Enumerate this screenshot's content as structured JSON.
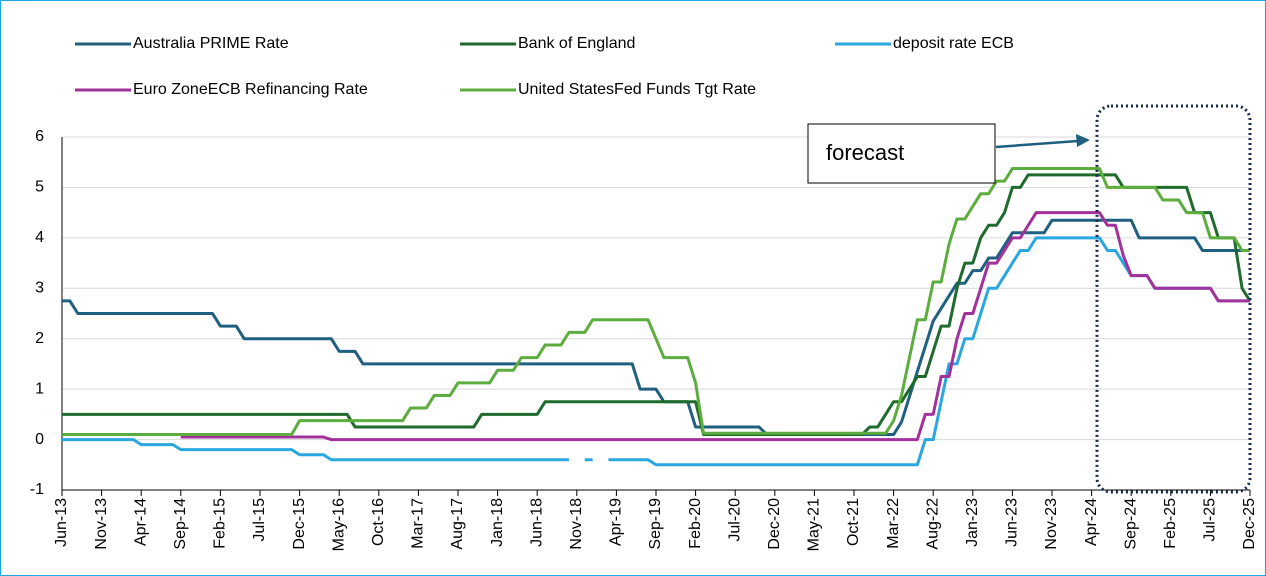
{
  "chart_data": {
    "type": "line",
    "categories": [
      "Jun-13",
      null,
      null,
      null,
      null,
      "Nov-13",
      null,
      null,
      null,
      null,
      "Apr-14",
      null,
      null,
      null,
      null,
      "Sep-14",
      null,
      null,
      null,
      null,
      "Feb-15",
      null,
      null,
      null,
      null,
      "Jul-15",
      null,
      null,
      null,
      null,
      "Dec-15",
      null,
      null,
      null,
      null,
      "May-16",
      null,
      null,
      null,
      null,
      "Oct-16",
      null,
      null,
      null,
      null,
      "Mar-17",
      null,
      null,
      null,
      null,
      "Aug-17",
      null,
      null,
      null,
      null,
      "Jan-18",
      null,
      null,
      null,
      null,
      "Jun-18",
      null,
      null,
      null,
      null,
      "Nov-18",
      null,
      null,
      null,
      null,
      "Apr-19",
      null,
      null,
      null,
      null,
      "Sep-19",
      null,
      null,
      null,
      null,
      "Feb-20",
      null,
      null,
      null,
      null,
      "Jul-20",
      null,
      null,
      null,
      null,
      "Dec-20",
      null,
      null,
      null,
      null,
      "May-21",
      null,
      null,
      null,
      null,
      "Oct-21",
      null,
      null,
      null,
      null,
      "Mar-22",
      null,
      null,
      null,
      null,
      "Aug-22",
      null,
      null,
      null,
      null,
      "Jan-23",
      null,
      null,
      null,
      null,
      "Jun-23",
      null,
      null,
      null,
      null,
      "Nov-23",
      null,
      null,
      null,
      null,
      "Apr-24",
      null,
      null,
      null,
      null,
      "Sep-24",
      null,
      null,
      null,
      null,
      "Feb-25",
      null,
      null,
      null,
      null,
      "Jul-25",
      null,
      null,
      null,
      null,
      "Dec-25"
    ],
    "series": [
      {
        "name": "Australia PRIME Rate",
        "color": "#1f5f7f",
        "values": [
          2.75,
          2.75,
          2.5,
          2.5,
          2.5,
          2.5,
          2.5,
          2.5,
          2.5,
          2.5,
          2.5,
          2.5,
          2.5,
          2.5,
          2.5,
          2.5,
          2.5,
          2.5,
          2.5,
          2.5,
          2.25,
          2.25,
          2.25,
          2,
          2,
          2,
          2,
          2,
          2,
          2,
          2,
          2,
          2,
          2,
          2,
          1.75,
          1.75,
          1.75,
          1.5,
          1.5,
          1.5,
          1.5,
          1.5,
          1.5,
          1.5,
          1.5,
          1.5,
          1.5,
          1.5,
          1.5,
          1.5,
          1.5,
          1.5,
          1.5,
          1.5,
          1.5,
          1.5,
          1.5,
          1.5,
          1.5,
          1.5,
          1.5,
          1.5,
          1.5,
          1.5,
          1.5,
          1.5,
          1.5,
          1.5,
          1.5,
          1.5,
          1.5,
          1.5,
          1,
          1,
          1,
          0.75,
          0.75,
          0.75,
          0.75,
          0.25,
          0.25,
          0.25,
          0.25,
          0.25,
          0.25,
          0.25,
          0.25,
          0.25,
          0.1,
          0.1,
          0.1,
          0.1,
          0.1,
          0.1,
          0.1,
          0.1,
          0.1,
          0.1,
          0.1,
          0.1,
          0.1,
          0.1,
          0.1,
          0.1,
          0.1,
          0.35,
          0.85,
          1.35,
          1.85,
          2.35,
          2.6,
          2.85,
          3.1,
          3.1,
          3.35,
          3.35,
          3.6,
          3.6,
          3.85,
          4.1,
          4.1,
          4.1,
          4.1,
          4.1,
          4.35,
          4.35,
          4.35,
          4.35,
          4.35,
          4.35,
          4.35,
          4.35,
          4.35,
          4.35,
          4.35,
          4,
          4,
          4,
          4,
          4,
          4,
          4,
          4,
          3.75,
          3.75,
          3.75,
          3.75,
          3.75,
          3.75,
          3.75
        ]
      },
      {
        "name": "Bank of England",
        "color": "#1e6b2d",
        "values": [
          0.5,
          0.5,
          0.5,
          0.5,
          0.5,
          0.5,
          0.5,
          0.5,
          0.5,
          0.5,
          0.5,
          0.5,
          0.5,
          0.5,
          0.5,
          0.5,
          0.5,
          0.5,
          0.5,
          0.5,
          0.5,
          0.5,
          0.5,
          0.5,
          0.5,
          0.5,
          0.5,
          0.5,
          0.5,
          0.5,
          0.5,
          0.5,
          0.5,
          0.5,
          0.5,
          0.5,
          0.5,
          0.25,
          0.25,
          0.25,
          0.25,
          0.25,
          0.25,
          0.25,
          0.25,
          0.25,
          0.25,
          0.25,
          0.25,
          0.25,
          0.25,
          0.25,
          0.25,
          0.5,
          0.5,
          0.5,
          0.5,
          0.5,
          0.5,
          0.5,
          0.5,
          0.75,
          0.75,
          0.75,
          0.75,
          0.75,
          0.75,
          0.75,
          0.75,
          0.75,
          0.75,
          0.75,
          0.75,
          0.75,
          0.75,
          0.75,
          0.75,
          0.75,
          0.75,
          0.75,
          0.75,
          0.1,
          0.1,
          0.1,
          0.1,
          0.1,
          0.1,
          0.1,
          0.1,
          0.1,
          0.1,
          0.1,
          0.1,
          0.1,
          0.1,
          0.1,
          0.1,
          0.1,
          0.1,
          0.1,
          0.1,
          0.1,
          0.25,
          0.25,
          0.5,
          0.75,
          0.75,
          1,
          1.25,
          1.25,
          1.75,
          2.25,
          2.25,
          3,
          3.5,
          3.5,
          4,
          4.25,
          4.25,
          4.5,
          5,
          5,
          5.25,
          5.25,
          5.25,
          5.25,
          5.25,
          5.25,
          5.25,
          5.25,
          5.25,
          5.25,
          5.25,
          5.25,
          5,
          5,
          5,
          5,
          5,
          5,
          5,
          5,
          5,
          4.5,
          4.5,
          4.5,
          4,
          4,
          4,
          3,
          2.75
        ]
      },
      {
        "name": "deposit rate ECB",
        "color": "#2aa7df",
        "values": [
          0,
          0,
          0,
          0,
          0,
          0,
          0,
          0,
          0,
          0,
          -0.1,
          -0.1,
          -0.1,
          -0.1,
          -0.1,
          -0.2,
          -0.2,
          -0.2,
          -0.2,
          -0.2,
          -0.2,
          -0.2,
          -0.2,
          -0.2,
          -0.2,
          -0.2,
          -0.2,
          -0.2,
          -0.2,
          -0.2,
          -0.3,
          -0.3,
          -0.3,
          -0.3,
          -0.4,
          -0.4,
          -0.4,
          -0.4,
          -0.4,
          -0.4,
          -0.4,
          -0.4,
          -0.4,
          -0.4,
          -0.4,
          -0.4,
          -0.4,
          -0.4,
          -0.4,
          -0.4,
          -0.4,
          -0.4,
          -0.4,
          -0.4,
          -0.4,
          -0.4,
          -0.4,
          -0.4,
          -0.4,
          -0.4,
          -0.4,
          -0.4,
          -0.4,
          -0.4,
          -0.4,
          null,
          -0.4,
          -0.4,
          null,
          -0.4,
          -0.4,
          -0.4,
          -0.4,
          -0.4,
          -0.4,
          -0.5,
          -0.5,
          -0.5,
          -0.5,
          -0.5,
          -0.5,
          -0.5,
          -0.5,
          -0.5,
          -0.5,
          -0.5,
          -0.5,
          -0.5,
          -0.5,
          -0.5,
          -0.5,
          -0.5,
          -0.5,
          -0.5,
          -0.5,
          -0.5,
          -0.5,
          -0.5,
          -0.5,
          -0.5,
          -0.5,
          -0.5,
          -0.5,
          -0.5,
          -0.5,
          -0.5,
          -0.5,
          -0.5,
          -0.5,
          0,
          0,
          0.75,
          1.5,
          1.5,
          2,
          2,
          2.5,
          3,
          3,
          3.25,
          3.5,
          3.75,
          3.75,
          4,
          4,
          4,
          4,
          4,
          4,
          4,
          4,
          4,
          3.75,
          3.75,
          3.5,
          3.25,
          3.25,
          3.25,
          3,
          3,
          3,
          3,
          3,
          3,
          3,
          3,
          2.75,
          2.75,
          2.75,
          2.75,
          2.75
        ]
      },
      {
        "name": "Euro ZoneECB Refinancing Rate",
        "color": "#a3319b",
        "values": [
          null,
          null,
          null,
          null,
          null,
          null,
          null,
          null,
          null,
          null,
          null,
          null,
          null,
          null,
          null,
          0.05,
          0.05,
          0.05,
          0.05,
          0.05,
          0.05,
          0.05,
          0.05,
          0.05,
          0.05,
          0.05,
          0.05,
          0.05,
          0.05,
          0.05,
          0.05,
          0.05,
          0.05,
          0.05,
          0,
          0,
          0,
          0,
          0,
          0,
          0,
          0,
          0,
          0,
          0,
          0,
          0,
          0,
          0,
          0,
          0,
          0,
          0,
          0,
          0,
          0,
          0,
          0,
          0,
          0,
          0,
          0,
          0,
          0,
          0,
          0,
          0,
          0,
          0,
          0,
          0,
          0,
          0,
          0,
          0,
          0,
          0,
          0,
          0,
          0,
          0,
          0,
          0,
          0,
          0,
          0,
          0,
          0,
          0,
          0,
          0,
          0,
          0,
          0,
          0,
          0,
          0,
          0,
          0,
          0,
          0,
          0,
          0,
          0,
          0,
          0,
          0,
          0,
          0,
          0.5,
          0.5,
          1.25,
          1.25,
          2,
          2.5,
          2.5,
          3,
          3.5,
          3.5,
          3.75,
          4,
          4,
          4.25,
          4.5,
          4.5,
          4.5,
          4.5,
          4.5,
          4.5,
          4.5,
          4.5,
          4.5,
          4.25,
          4.25,
          3.65,
          3.25,
          3.25,
          3.25,
          3,
          3,
          3,
          3,
          3,
          3,
          3,
          3,
          2.75,
          2.75,
          2.75,
          2.75,
          2.75
        ]
      },
      {
        "name": "United StatesFed Funds Tgt Rate",
        "color": "#5cad3e",
        "values": [
          0.1,
          0.1,
          0.1,
          0.1,
          0.1,
          0.1,
          0.1,
          0.1,
          0.1,
          0.1,
          0.1,
          0.1,
          0.1,
          0.1,
          0.1,
          0.1,
          0.1,
          0.1,
          0.1,
          0.1,
          0.1,
          0.1,
          0.1,
          0.1,
          0.1,
          0.1,
          0.1,
          0.1,
          0.1,
          0.1,
          0.375,
          0.375,
          0.375,
          0.375,
          0.375,
          0.375,
          0.375,
          0.375,
          0.375,
          0.375,
          0.375,
          0.375,
          0.375,
          0.375,
          0.625,
          0.625,
          0.625,
          0.875,
          0.875,
          0.875,
          1.125,
          1.125,
          1.125,
          1.125,
          1.125,
          1.375,
          1.375,
          1.375,
          1.625,
          1.625,
          1.625,
          1.875,
          1.875,
          1.875,
          2.125,
          2.125,
          2.125,
          2.375,
          2.375,
          2.375,
          2.375,
          2.375,
          2.375,
          2.375,
          2.375,
          2,
          1.625,
          1.625,
          1.625,
          1.625,
          1.125,
          0.125,
          0.125,
          0.125,
          0.125,
          0.125,
          0.125,
          0.125,
          0.125,
          0.125,
          0.125,
          0.125,
          0.125,
          0.125,
          0.125,
          0.125,
          0.125,
          0.125,
          0.125,
          0.125,
          0.125,
          0.125,
          0.125,
          0.125,
          0.125,
          0.375,
          0.875,
          1.625,
          2.375,
          2.375,
          3.125,
          3.125,
          3.875,
          4.375,
          4.375,
          4.625,
          4.875,
          4.875,
          5.125,
          5.125,
          5.375,
          5.375,
          5.375,
          5.375,
          5.375,
          5.375,
          5.375,
          5.375,
          5.375,
          5.375,
          5.375,
          5.375,
          5,
          5,
          5,
          5,
          5,
          5,
          5,
          4.75,
          4.75,
          4.75,
          4.5,
          4.5,
          4.5,
          4,
          4,
          4,
          4,
          3.75,
          3.75
        ]
      }
    ],
    "annotation": "forecast",
    "ylim": [
      -1,
      6
    ],
    "yticks": [
      -1,
      0,
      1,
      2,
      3,
      4,
      5,
      6
    ],
    "grid": true,
    "legend": "top"
  }
}
